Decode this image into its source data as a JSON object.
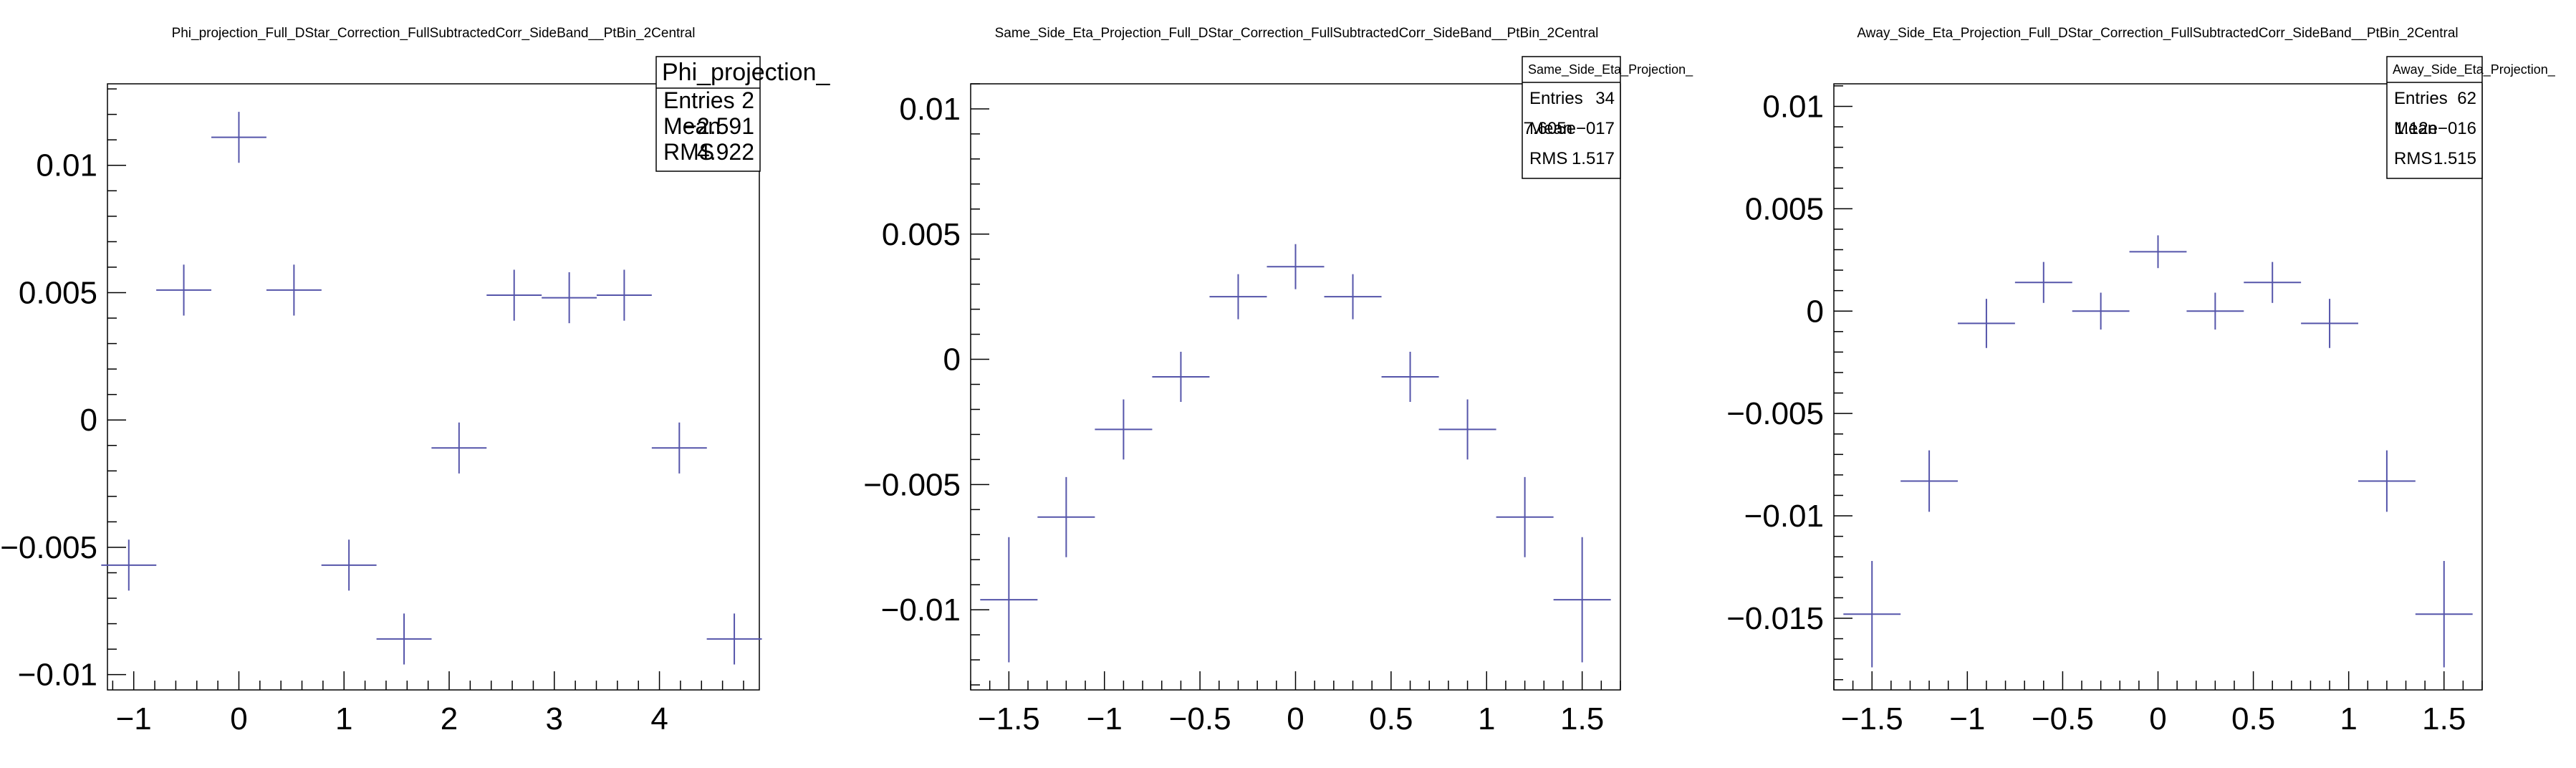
{
  "chart_data": [
    {
      "type": "scatter",
      "title": "Phi_projection_Full_DStar_Correction_FullSubtractedCorr_SideBand__PtBin_2Central",
      "xlabel": "",
      "ylabel": "",
      "xlim": [
        -1.25,
        4.95
      ],
      "ylim": [
        -0.0106,
        0.0132
      ],
      "xticks": [
        -1,
        0,
        1,
        2,
        3,
        4
      ],
      "xtick_labels": [
        "−1",
        "0",
        "1",
        "2",
        "3",
        "4"
      ],
      "yticks": [
        -0.01,
        -0.005,
        0,
        0.005,
        0.01
      ],
      "ytick_labels": [
        "−0.01",
        "−0.005",
        "0",
        "0.005",
        "0.01"
      ],
      "x": [
        -1.047,
        -0.524,
        0.0,
        0.524,
        1.047,
        1.571,
        2.094,
        2.618,
        3.142,
        3.665,
        4.189,
        4.712
      ],
      "y": [
        -0.0057,
        0.0051,
        0.0111,
        0.0051,
        -0.0057,
        -0.0086,
        -0.0011,
        0.0049,
        0.0048,
        0.0049,
        -0.0011,
        -0.0086
      ],
      "yerr": [
        0.001,
        0.001,
        0.001,
        0.001,
        0.001,
        0.001,
        0.001,
        0.001,
        0.001,
        0.001,
        0.001,
        0.001
      ],
      "xhalfwidth": 0.262,
      "grid": false,
      "marker_color": "#5555aa",
      "stats": {
        "name": "Phi_projection_",
        "rows": [
          {
            "label": "Entries",
            "value": "2"
          },
          {
            "label": "Mean",
            "value": "−2.591"
          },
          {
            "label": "RMS",
            "value": "4.922"
          }
        ]
      }
    },
    {
      "type": "scatter",
      "title": "Same_Side_Eta_Projection_Full_DStar_Correction_FullSubtractedCorr_SideBand__PtBin_2Central",
      "xlabel": "",
      "ylabel": "",
      "xlim": [
        -1.7,
        1.7
      ],
      "ylim": [
        -0.0132,
        0.011
      ],
      "xticks": [
        -1.5,
        -1,
        -0.5,
        0,
        0.5,
        1,
        1.5
      ],
      "xtick_labels": [
        "−1.5",
        "−1",
        "−0.5",
        "0",
        "0.5",
        "1",
        "1.5"
      ],
      "yticks": [
        -0.01,
        -0.005,
        0,
        0.005,
        0.01
      ],
      "ytick_labels": [
        "−0.01",
        "−0.005",
        "0",
        "0.005",
        "0.01"
      ],
      "x": [
        -1.5,
        -1.2,
        -0.9,
        -0.6,
        -0.3,
        0.0,
        0.3,
        0.6,
        0.9,
        1.2,
        1.5
      ],
      "y": [
        -0.0096,
        -0.0063,
        -0.0028,
        -0.0007,
        0.0025,
        0.0037,
        0.0025,
        -0.0007,
        -0.0028,
        -0.0063,
        -0.0096
      ],
      "yerr": [
        0.0025,
        0.0016,
        0.0012,
        0.001,
        0.0009,
        0.0009,
        0.0009,
        0.001,
        0.0012,
        0.0016,
        0.0025
      ],
      "xhalfwidth": 0.15,
      "grid": false,
      "marker_color": "#5555aa",
      "stats": {
        "name": "Same_Side_Eta_Projection_",
        "rows": [
          {
            "label": "Entries",
            "value": "34"
          },
          {
            "label": "Mean",
            "value": "7.605e−017"
          },
          {
            "label": "RMS",
            "value": "1.517"
          }
        ]
      }
    },
    {
      "type": "scatter",
      "title": "Away_Side_Eta_Projection_Full_DStar_Correction_FullSubtractedCorr_SideBand__PtBin_2Central",
      "xlabel": "",
      "ylabel": "",
      "xlim": [
        -1.7,
        1.7
      ],
      "ylim": [
        -0.0185,
        0.0111
      ],
      "xticks": [
        -1.5,
        -1,
        -0.5,
        0,
        0.5,
        1,
        1.5
      ],
      "xtick_labels": [
        "−1.5",
        "−1",
        "−0.5",
        "0",
        "0.5",
        "1",
        "1.5"
      ],
      "yticks": [
        -0.015,
        -0.01,
        -0.005,
        0,
        0.005,
        0.01
      ],
      "ytick_labels": [
        "−0.015",
        "−0.01",
        "−0.005",
        "0",
        "0.005",
        "0.01"
      ],
      "x": [
        -1.5,
        -1.2,
        -0.9,
        -0.6,
        -0.3,
        0.0,
        0.3,
        0.6,
        0.9,
        1.2,
        1.5
      ],
      "y": [
        -0.0148,
        -0.0083,
        -0.0006,
        0.0014,
        0.0,
        0.0029,
        0.0,
        0.0014,
        -0.0006,
        -0.0083,
        -0.0148
      ],
      "yerr": [
        0.0026,
        0.0015,
        0.0012,
        0.001,
        0.0009,
        0.0008,
        0.0009,
        0.001,
        0.0012,
        0.0015,
        0.0026
      ],
      "xhalfwidth": 0.15,
      "grid": false,
      "marker_color": "#5555aa",
      "stats": {
        "name": "Away_Side_Eta_Projection_",
        "rows": [
          {
            "label": "Entries",
            "value": "62"
          },
          {
            "label": "Mean",
            "value": "1.12e−016"
          },
          {
            "label": "RMS",
            "value": "1.515"
          }
        ]
      }
    }
  ]
}
